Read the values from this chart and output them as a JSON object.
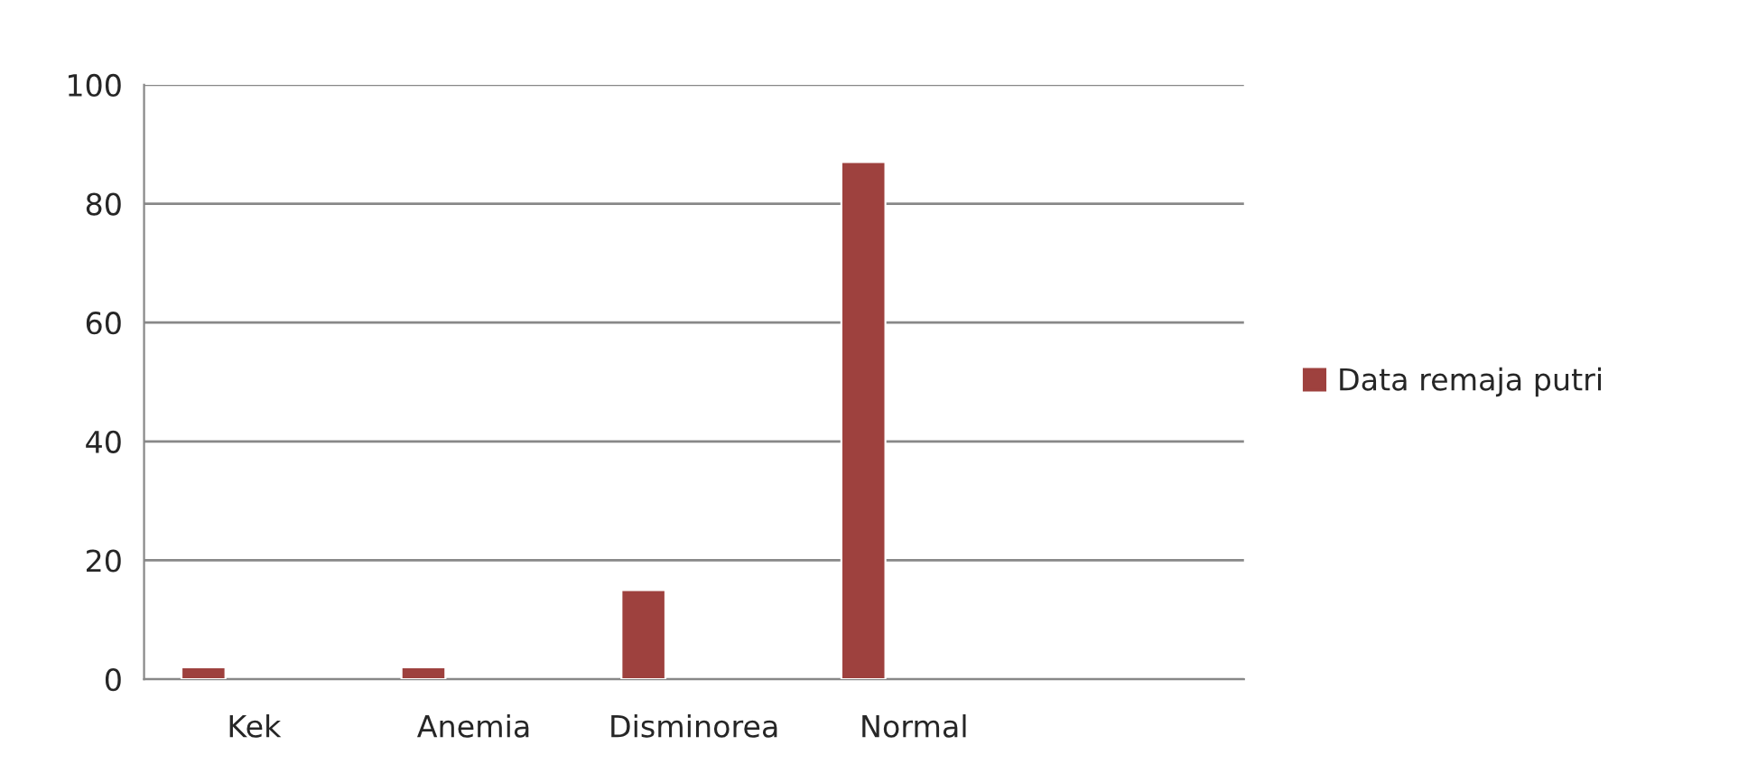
{
  "chart_data": {
    "type": "bar",
    "categories": [
      "Kek",
      "Anemia",
      "Disminorea",
      "Normal",
      null
    ],
    "series": [
      {
        "name": "Data remaja putri",
        "color": "#9e413e",
        "values": [
          2,
          2,
          15,
          87,
          null
        ]
      }
    ],
    "ylim": [
      0,
      100
    ],
    "yticks": [
      0,
      20,
      40,
      60,
      80,
      100
    ],
    "grid": "y",
    "legend": "right"
  }
}
